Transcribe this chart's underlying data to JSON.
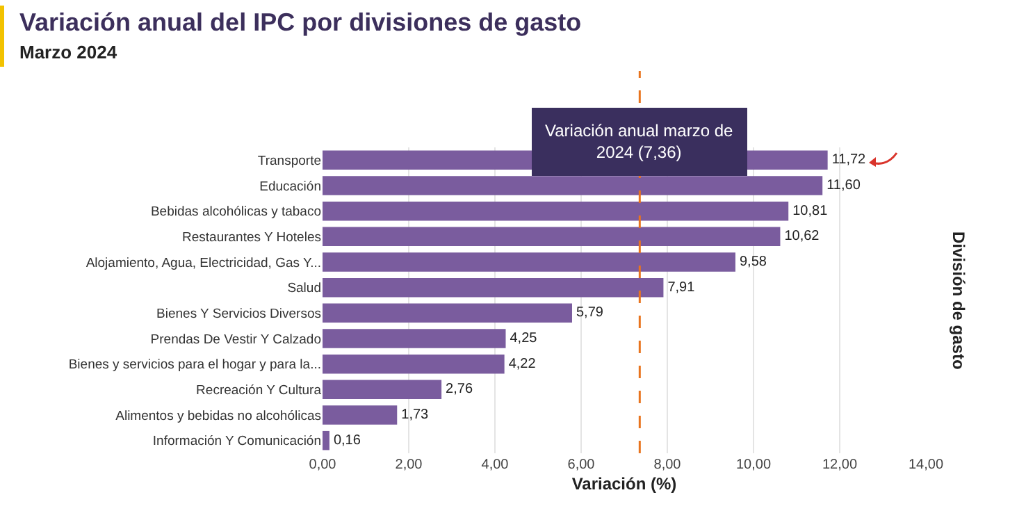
{
  "chart_data": {
    "type": "bar",
    "orientation": "horizontal",
    "title": "Variación anual del IPC por divisiones de gasto",
    "subtitle": "Marzo 2024",
    "xlabel": "Variación (%)",
    "ylabel": "División de gasto",
    "categories": [
      "Transporte",
      "Educación",
      "Bebidas alcohólicas y tabaco",
      "Restaurantes Y Hoteles",
      "Alojamiento, Agua, Electricidad, Gas Y...",
      "Salud",
      "Bienes Y Servicios Diversos",
      "Prendas De Vestir Y Calzado",
      "Bienes y servicios para el hogar y para la...",
      "Recreación Y Cultura",
      "Alimentos y bebidas no alcohólicas",
      "Información Y Comunicación"
    ],
    "values": [
      11.72,
      11.6,
      10.81,
      10.62,
      9.58,
      7.91,
      5.79,
      4.25,
      4.22,
      2.76,
      1.73,
      0.16
    ],
    "value_labels": [
      "11,72",
      "11,60",
      "10,81",
      "10,62",
      "9,58",
      "7,91",
      "5,79",
      "4,25",
      "4,22",
      "2,76",
      "1,73",
      "0,16"
    ],
    "color": "#7a5c9e",
    "xlim": [
      0,
      14
    ],
    "xticks": [
      {
        "value": 0,
        "label": "0,00"
      },
      {
        "value": 2,
        "label": "2,00"
      },
      {
        "value": 4,
        "label": "4,00"
      },
      {
        "value": 6,
        "label": "6,00"
      },
      {
        "value": 8,
        "label": "8,00"
      },
      {
        "value": 10,
        "label": "10,00"
      },
      {
        "value": 12,
        "label": "12,00"
      },
      {
        "value": 14,
        "label": "14,00"
      }
    ],
    "grid": "x",
    "ref_lines": [
      {
        "axis": "x",
        "value": 7.36,
        "label": "Variación anual marzo de 2024 (7,36)",
        "color": "#e8741e",
        "line_style": "dashed"
      }
    ]
  }
}
